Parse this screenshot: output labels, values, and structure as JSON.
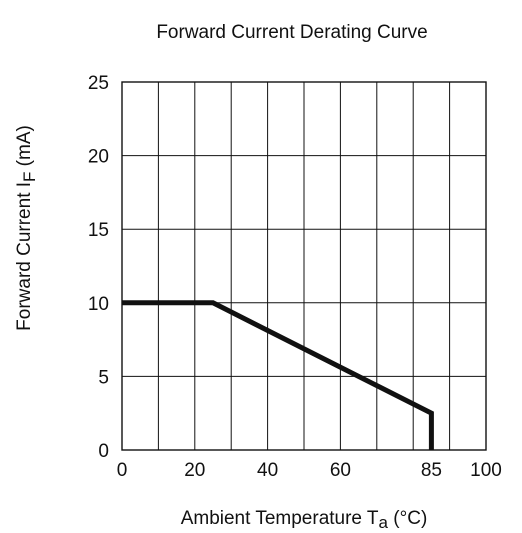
{
  "chart_data": {
    "type": "line",
    "title": "Forward Current Derating Curve",
    "xlabel": {
      "main": "Ambient Temperature T",
      "sub": "a",
      "unit": " (°C)"
    },
    "ylabel": {
      "main": "Forward Current   I",
      "sub": "F",
      "unit": " (mA)"
    },
    "xlim": [
      0,
      100
    ],
    "ylim": [
      0,
      25
    ],
    "x_gridlines": [
      0,
      10,
      20,
      30,
      40,
      50,
      60,
      70,
      80,
      90,
      100
    ],
    "y_gridlines": [
      0,
      5,
      10,
      15,
      20,
      25
    ],
    "x_ticks": [
      {
        "value": 0,
        "label": "0"
      },
      {
        "value": 20,
        "label": "20"
      },
      {
        "value": 40,
        "label": "40"
      },
      {
        "value": 60,
        "label": "60"
      },
      {
        "value": 85,
        "label": "85"
      },
      {
        "value": 100,
        "label": "100"
      }
    ],
    "y_ticks": [
      {
        "value": 0,
        "label": "0"
      },
      {
        "value": 5,
        "label": "5"
      },
      {
        "value": 10,
        "label": "10"
      },
      {
        "value": 15,
        "label": "15"
      },
      {
        "value": 20,
        "label": "20"
      },
      {
        "value": 25,
        "label": "25"
      }
    ],
    "grid": true,
    "legend": "none",
    "series": [
      {
        "x": [
          0,
          25,
          85,
          85
        ],
        "y": [
          10,
          10,
          2.5,
          0
        ]
      }
    ],
    "colors": {
      "line": "#111111",
      "grid": "#111111",
      "text": "#111111"
    }
  }
}
